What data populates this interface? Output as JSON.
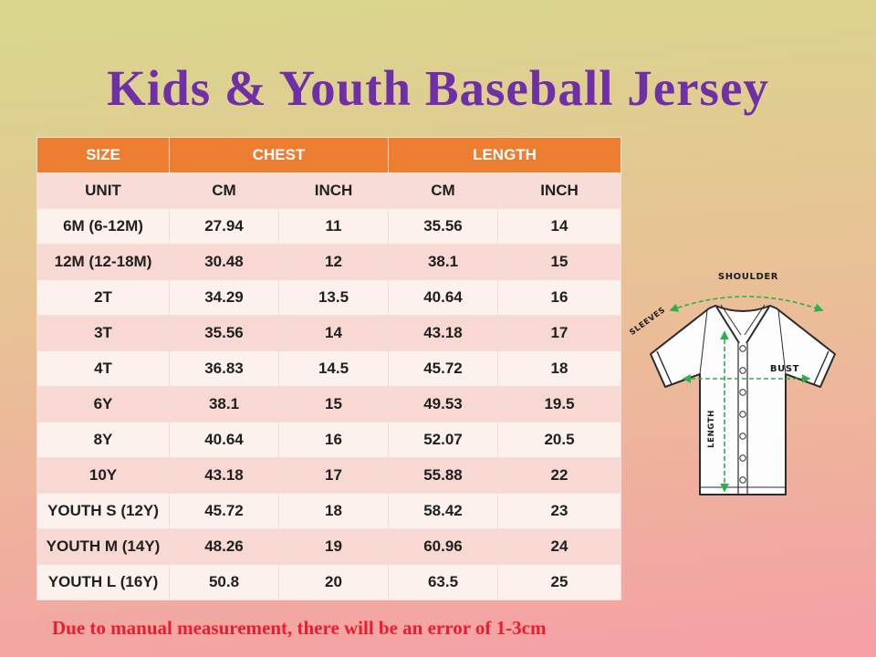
{
  "title": "Kids & Youth Baseball Jersey",
  "footnote": "Due to manual measurement, there will be an error of 1-3cm",
  "colors": {
    "title": "#6E2FA7",
    "footnote_red": "#EC1C2E",
    "header_bg": "#ED7D31",
    "header_text": "#FFFFFF",
    "row_light": "#FDF1EE",
    "row_dark": "#F7D8D2",
    "unit_row": "#F8DCD7",
    "measure_green": "#2FAE4E",
    "bg_top": "#D8D88C",
    "bg_bottom": "#F69FA6"
  },
  "chart_data": {
    "type": "table",
    "title": "Kids & Youth Baseball Jersey",
    "column_groups": [
      {
        "label": "SIZE",
        "span": 1
      },
      {
        "label": "CHEST",
        "span": 2
      },
      {
        "label": "LENGTH",
        "span": 2
      }
    ],
    "unit_row": [
      "UNIT",
      "CM",
      "INCH",
      "CM",
      "INCH"
    ],
    "rows": [
      [
        "6M (6-12M)",
        "27.94",
        "11",
        "35.56",
        "14"
      ],
      [
        "12M (12-18M)",
        "30.48",
        "12",
        "38.1",
        "15"
      ],
      [
        "2T",
        "34.29",
        "13.5",
        "40.64",
        "16"
      ],
      [
        "3T",
        "35.56",
        "14",
        "43.18",
        "17"
      ],
      [
        "4T",
        "36.83",
        "14.5",
        "45.72",
        "18"
      ],
      [
        "6Y",
        "38.1",
        "15",
        "49.53",
        "19.5"
      ],
      [
        "8Y",
        "40.64",
        "16",
        "52.07",
        "20.5"
      ],
      [
        "10Y",
        "43.18",
        "17",
        "55.88",
        "22"
      ],
      [
        "YOUTH S (12Y)",
        "45.72",
        "18",
        "58.42",
        "23"
      ],
      [
        "YOUTH M (14Y)",
        "48.26",
        "19",
        "60.96",
        "24"
      ],
      [
        "YOUTH L (16Y)",
        "50.8",
        "20",
        "63.5",
        "25"
      ]
    ]
  },
  "diagram": {
    "labels": {
      "shoulder": "SHOULDER",
      "sleeves": "SLEEVES",
      "bust": "BUST",
      "length": "LENGTH"
    }
  }
}
